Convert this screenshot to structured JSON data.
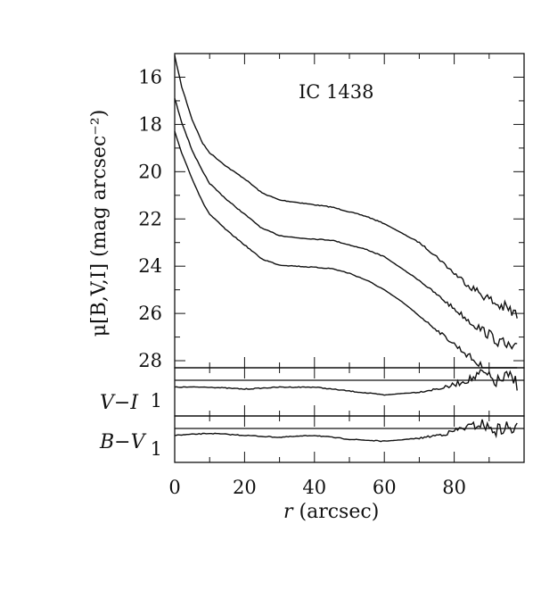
{
  "chart_data": {
    "type": "line",
    "title": "IC 1438",
    "xlabel_var": "r",
    "xlabel_rest": " (arcsec)",
    "ylabel": "μ[B,V,I] (mag arcsec⁻²)",
    "xlim": [
      0,
      100
    ],
    "x_ticks": [
      0,
      20,
      40,
      60,
      80
    ],
    "x_tick_labels": [
      "0",
      "20",
      "40",
      "60",
      "80"
    ],
    "panels": [
      {
        "name": "profile",
        "ylim": [
          15,
          28.3
        ],
        "inverted": true,
        "y_ticks": [
          16,
          18,
          20,
          22,
          24,
          26,
          28
        ],
        "y_tick_labels": [
          "16",
          "18",
          "20",
          "22",
          "24",
          "26",
          "28"
        ],
        "series": [
          {
            "x": [
              0,
              2,
              5,
              8,
              10,
              15,
              20,
              25,
              30,
              35,
              40,
              45,
              50,
              55,
              60,
              65,
              70,
              75,
              80,
              85,
              88,
              90,
              92,
              95,
              98
            ],
            "y": [
              15.1,
              16.4,
              17.8,
              18.8,
              19.2,
              19.8,
              20.3,
              20.9,
              21.2,
              21.3,
              21.4,
              21.5,
              21.7,
              21.9,
              22.2,
              22.6,
              23.0,
              23.6,
              24.3,
              24.9,
              25.2,
              25.4,
              25.6,
              25.8,
              26.1
            ]
          },
          {
            "x": [
              0,
              2,
              5,
              8,
              10,
              15,
              20,
              25,
              30,
              35,
              40,
              45,
              50,
              55,
              60,
              65,
              70,
              75,
              80,
              85,
              88,
              90,
              92,
              95,
              98
            ],
            "y": [
              16.9,
              17.9,
              19.1,
              20.0,
              20.5,
              21.2,
              21.8,
              22.4,
              22.7,
              22.8,
              22.85,
              22.9,
              23.1,
              23.3,
              23.6,
              24.1,
              24.6,
              25.2,
              25.8,
              26.4,
              26.7,
              26.9,
              27.1,
              27.4,
              27.6
            ]
          },
          {
            "x": [
              0,
              2,
              5,
              8,
              10,
              15,
              20,
              25,
              30,
              35,
              40,
              45,
              50,
              55,
              60,
              65,
              70,
              75,
              80,
              85,
              88,
              90,
              92,
              95,
              98
            ],
            "y": [
              18.3,
              19.2,
              20.3,
              21.3,
              21.8,
              22.5,
              23.1,
              23.7,
              23.95,
              24.0,
              24.05,
              24.1,
              24.3,
              24.6,
              25.0,
              25.5,
              26.1,
              26.7,
              27.3,
              27.9,
              28.3,
              28.6,
              28.9,
              29.2,
              29.5
            ]
          }
        ]
      },
      {
        "name": "color",
        "label": "V−I",
        "tick_label": "1",
        "series": [
          {
            "x": [
              0,
              10,
              20,
              30,
              40,
              50,
              60,
              70,
              78,
              82,
              86,
              88,
              90,
              92,
              95,
              98
            ],
            "y": [
              1.0,
              1.0,
              1.02,
              1.0,
              1.0,
              1.04,
              1.08,
              1.05,
              1.0,
              0.95,
              0.9,
              0.85,
              0.9,
              0.95,
              0.9,
              0.95
            ]
          }
        ]
      },
      {
        "name": "color",
        "label": "B−V",
        "tick_label": "1",
        "series": [
          {
            "x": [
              0,
              10,
              20,
              30,
              40,
              50,
              60,
              70,
              78,
              82,
              86,
              88,
              90,
              92,
              95,
              98
            ],
            "y": [
              1.0,
              0.98,
              1.0,
              1.02,
              1.0,
              1.04,
              1.06,
              1.03,
              0.98,
              0.93,
              0.9,
              0.88,
              0.93,
              0.95,
              0.92,
              0.95
            ]
          }
        ]
      }
    ],
    "grid": false,
    "legend": "none"
  }
}
